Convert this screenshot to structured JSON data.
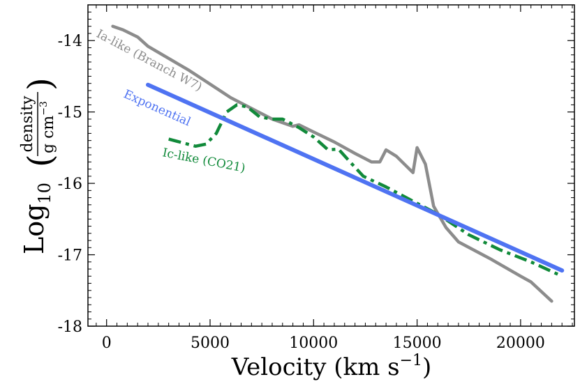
{
  "chart_data": {
    "type": "line",
    "xlabel": "Velocity (km s",
    "xlabel_sup": "−1",
    "xlabel_tail": ")",
    "ylabel": {
      "base": "Log",
      "sub": "10",
      "numerator": "density",
      "denominator": "g cm",
      "denominator_sup": "−3"
    },
    "xlim": [
      -900,
      22600
    ],
    "ylim": [
      -18,
      -13.5
    ],
    "xticks": [
      0,
      5000,
      10000,
      15000,
      20000
    ],
    "xtick_labels": [
      "0",
      "5000",
      "10000",
      "15000",
      "20000"
    ],
    "yticks": [
      -14,
      -15,
      -16,
      -17,
      -18
    ],
    "ytick_labels": [
      "-14",
      "-15",
      "-16",
      "-17",
      "-18"
    ],
    "grid": false,
    "series": [
      {
        "name": "Ia-like (Branch W7)",
        "label": "Ia-like (Branch W7)",
        "color": "#8c8c8c",
        "style": "solid",
        "points": [
          [
            300,
            -13.8
          ],
          [
            800,
            -13.85
          ],
          [
            1500,
            -13.95
          ],
          [
            2000,
            -14.08
          ],
          [
            4000,
            -14.42
          ],
          [
            6000,
            -14.8
          ],
          [
            8000,
            -15.1
          ],
          [
            9000,
            -15.2
          ],
          [
            9300,
            -15.18
          ],
          [
            10000,
            -15.28
          ],
          [
            11000,
            -15.42
          ],
          [
            12000,
            -15.58
          ],
          [
            12800,
            -15.7
          ],
          [
            13200,
            -15.7
          ],
          [
            13500,
            -15.53
          ],
          [
            14000,
            -15.62
          ],
          [
            14800,
            -15.85
          ],
          [
            15000,
            -15.5
          ],
          [
            15400,
            -15.73
          ],
          [
            15800,
            -16.32
          ],
          [
            16000,
            -16.42
          ],
          [
            16400,
            -16.62
          ],
          [
            17000,
            -16.82
          ],
          [
            18500,
            -17.05
          ],
          [
            20000,
            -17.3
          ],
          [
            20500,
            -17.38
          ],
          [
            21500,
            -17.65
          ]
        ]
      },
      {
        "name": "Ic-like (CO21)",
        "label": "Ic-like (CO21)",
        "color": "#118a3a",
        "style": "dashdot",
        "points": [
          [
            3000,
            -15.38
          ],
          [
            4300,
            -15.48
          ],
          [
            4800,
            -15.45
          ],
          [
            5300,
            -15.3
          ],
          [
            5800,
            -15.0
          ],
          [
            6300,
            -14.9
          ],
          [
            6800,
            -14.93
          ],
          [
            7400,
            -15.07
          ],
          [
            8000,
            -15.1
          ],
          [
            8500,
            -15.1
          ],
          [
            9300,
            -15.22
          ],
          [
            10000,
            -15.35
          ],
          [
            10700,
            -15.53
          ],
          [
            11200,
            -15.52
          ],
          [
            11700,
            -15.68
          ],
          [
            12400,
            -15.9
          ],
          [
            13500,
            -16.05
          ],
          [
            15000,
            -16.28
          ],
          [
            16000,
            -16.43
          ],
          [
            17500,
            -16.72
          ],
          [
            19000,
            -16.93
          ],
          [
            20500,
            -17.1
          ],
          [
            22000,
            -17.3
          ]
        ]
      },
      {
        "name": "Exponential",
        "label": "Exponential",
        "color": "#4f73f2",
        "style": "solid",
        "points": [
          [
            2000,
            -14.62
          ],
          [
            22000,
            -17.22
          ]
        ]
      }
    ]
  }
}
